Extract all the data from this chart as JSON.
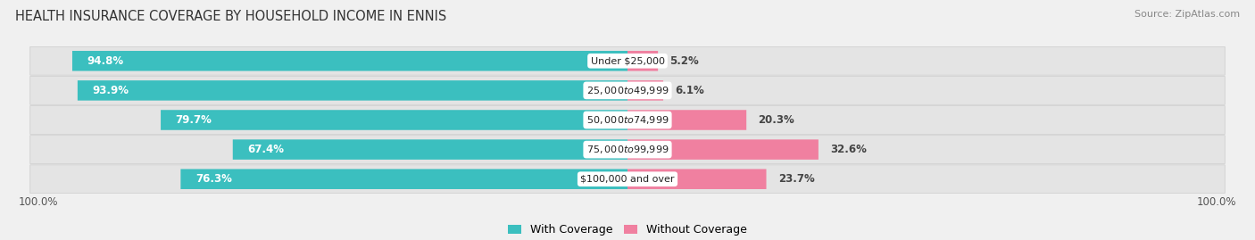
{
  "title": "HEALTH INSURANCE COVERAGE BY HOUSEHOLD INCOME IN ENNIS",
  "source": "Source: ZipAtlas.com",
  "categories": [
    "Under $25,000",
    "$25,000 to $49,999",
    "$50,000 to $74,999",
    "$75,000 to $99,999",
    "$100,000 and over"
  ],
  "with_coverage": [
    94.8,
    93.9,
    79.7,
    67.4,
    76.3
  ],
  "without_coverage": [
    5.2,
    6.1,
    20.3,
    32.6,
    23.7
  ],
  "with_coverage_color": "#3bbfbf",
  "without_coverage_color": "#f080a0",
  "bg_color": "#f0f0f0",
  "row_bg_color": "#e0e0e0",
  "title_fontsize": 10.5,
  "source_fontsize": 8,
  "bar_fontsize": 8.5,
  "legend_fontsize": 9,
  "axis_label_fontsize": 8.5,
  "left_axis_label": "100.0%",
  "right_axis_label": "100.0%"
}
